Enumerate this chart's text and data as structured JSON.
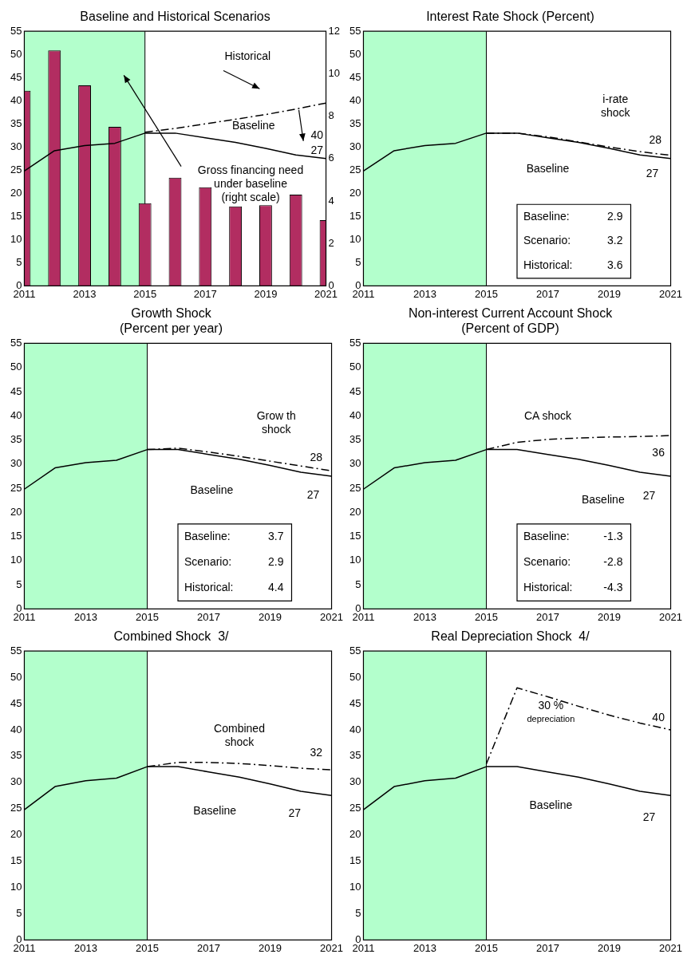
{
  "chart_data": [
    {
      "type": "line",
      "title": "Baseline and Historical Scenarios",
      "x": [
        2011,
        2012,
        2013,
        2014,
        2015,
        2016,
        2017,
        2018,
        2019,
        2020,
        2021
      ],
      "xlim": [
        2011,
        2021
      ],
      "xticks": [
        2011,
        2013,
        2015,
        2017,
        2019,
        2021
      ],
      "ylim": [
        0,
        55
      ],
      "yticks": [
        0,
        5,
        10,
        15,
        20,
        25,
        30,
        35,
        40,
        45,
        50,
        55
      ],
      "y2lim": [
        0,
        12
      ],
      "y2ticks": [
        0,
        2,
        4,
        6,
        8,
        10,
        12
      ],
      "grid": false,
      "legend": false,
      "marker": "none",
      "series": [
        {
          "type": "bar",
          "axis": "y2",
          "color": "#b22d61",
          "values": [
            9.2,
            11.1,
            9.45,
            7.5,
            3.9,
            5.1,
            4.65,
            3.75,
            3.8,
            4.3,
            3.1
          ]
        },
        {
          "color": "#000000",
          "line_style": "solid",
          "values": [
            24.8,
            29.2,
            30.3,
            30.8,
            33.0,
            33.0,
            32.0,
            31.0,
            29.7,
            28.3,
            27.5
          ]
        },
        {
          "color": "#000000",
          "line_style": "dashed",
          "values": [
            null,
            null,
            null,
            null,
            33.2,
            34.0,
            35.0,
            36.0,
            37.0,
            38.2,
            39.5
          ]
        }
      ],
      "bands": [
        {
          "axis": "x",
          "from": 2011,
          "to": 2015,
          "color": "#b3ffcc"
        }
      ],
      "ref_lines": [
        {
          "axis": "x",
          "value": 2015,
          "color": "#000000"
        }
      ],
      "annotations": [
        "Historical",
        "Baseline",
        "40",
        "27",
        "Gross financing need\nunder baseline\n(right scale)"
      ]
    },
    {
      "type": "line",
      "title": "Interest Rate Shock (Percent)",
      "x": [
        2011,
        2012,
        2013,
        2014,
        2015,
        2016,
        2017,
        2018,
        2019,
        2020,
        2021
      ],
      "xlim": [
        2011,
        2021
      ],
      "xticks": [
        2011,
        2013,
        2015,
        2017,
        2019,
        2021
      ],
      "ylim": [
        0,
        55
      ],
      "yticks": [
        0,
        5,
        10,
        15,
        20,
        25,
        30,
        35,
        40,
        45,
        50,
        55
      ],
      "grid": false,
      "legend": false,
      "marker": "none",
      "series": [
        {
          "color": "#000000",
          "line_style": "solid",
          "values": [
            24.8,
            29.2,
            30.3,
            30.8,
            33.0,
            33.0,
            32.0,
            31.0,
            29.7,
            28.3,
            27.5
          ]
        },
        {
          "color": "#000000",
          "line_style": "dashed",
          "values": [
            null,
            null,
            null,
            null,
            33.0,
            33.0,
            32.2,
            31.1,
            30.0,
            29.0,
            28.2
          ]
        }
      ],
      "bands": [
        {
          "axis": "x",
          "from": 2011,
          "to": 2015,
          "color": "#b3ffcc"
        }
      ],
      "ref_lines": [
        {
          "axis": "x",
          "value": 2015,
          "color": "#000000"
        }
      ],
      "annotations": [
        "i-rate\nshock",
        "28",
        "Baseline",
        "27",
        "Baseline:",
        "2.9",
        "Scenario:",
        "3.2",
        "Historical:",
        "3.6"
      ]
    },
    {
      "type": "line",
      "title": "Growth Shock",
      "subtitle": "(Percent per year)",
      "x": [
        2011,
        2012,
        2013,
        2014,
        2015,
        2016,
        2017,
        2018,
        2019,
        2020,
        2021
      ],
      "xlim": [
        2011,
        2021
      ],
      "xticks": [
        2011,
        2013,
        2015,
        2017,
        2019,
        2021
      ],
      "ylim": [
        0,
        55
      ],
      "yticks": [
        0,
        5,
        10,
        15,
        20,
        25,
        30,
        35,
        40,
        45,
        50,
        55
      ],
      "grid": false,
      "legend": false,
      "marker": "none",
      "series": [
        {
          "color": "#000000",
          "line_style": "solid",
          "values": [
            24.8,
            29.2,
            30.3,
            30.8,
            33.0,
            33.0,
            32.0,
            31.0,
            29.7,
            28.3,
            27.5
          ]
        },
        {
          "color": "#000000",
          "line_style": "dashed",
          "values": [
            null,
            null,
            null,
            null,
            33.0,
            33.3,
            32.5,
            31.6,
            30.6,
            29.6,
            28.6
          ]
        }
      ],
      "bands": [
        {
          "axis": "x",
          "from": 2011,
          "to": 2015,
          "color": "#b3ffcc"
        }
      ],
      "ref_lines": [
        {
          "axis": "x",
          "value": 2015,
          "color": "#000000"
        }
      ],
      "annotations": [
        "Grow th\nshock",
        "28",
        "Baseline",
        "27",
        "Baseline:",
        "3.7",
        "Scenario:",
        "2.9",
        "Historical:",
        "4.4"
      ]
    },
    {
      "type": "line",
      "title": "Non-interest Current Account Shock",
      "subtitle": "(Percent of GDP)",
      "x": [
        2011,
        2012,
        2013,
        2014,
        2015,
        2016,
        2017,
        2018,
        2019,
        2020,
        2021
      ],
      "xlim": [
        2011,
        2021
      ],
      "xticks": [
        2011,
        2013,
        2015,
        2017,
        2019,
        2021
      ],
      "ylim": [
        0,
        55
      ],
      "yticks": [
        0,
        5,
        10,
        15,
        20,
        25,
        30,
        35,
        40,
        45,
        50,
        55
      ],
      "grid": false,
      "legend": false,
      "marker": "none",
      "series": [
        {
          "color": "#000000",
          "line_style": "solid",
          "values": [
            24.8,
            29.2,
            30.3,
            30.8,
            33.0,
            33.0,
            32.0,
            31.0,
            29.7,
            28.3,
            27.5
          ]
        },
        {
          "color": "#000000",
          "line_style": "dashed",
          "values": [
            null,
            null,
            null,
            null,
            33.0,
            34.5,
            35.1,
            35.4,
            35.6,
            35.7,
            35.9
          ]
        }
      ],
      "bands": [
        {
          "axis": "x",
          "from": 2011,
          "to": 2015,
          "color": "#b3ffcc"
        }
      ],
      "ref_lines": [
        {
          "axis": "x",
          "value": 2015,
          "color": "#000000"
        }
      ],
      "annotations": [
        "CA shock",
        "36",
        "Baseline",
        "27",
        "Baseline:",
        "-1.3",
        "Scenario:",
        "-2.8",
        "Historical:",
        "-4.3"
      ]
    },
    {
      "type": "line",
      "title": "Combined Shock  3/",
      "x": [
        2011,
        2012,
        2013,
        2014,
        2015,
        2016,
        2017,
        2018,
        2019,
        2020,
        2021
      ],
      "xlim": [
        2011,
        2021
      ],
      "xticks": [
        2011,
        2013,
        2015,
        2017,
        2019,
        2021
      ],
      "ylim": [
        0,
        55
      ],
      "yticks": [
        0,
        5,
        10,
        15,
        20,
        25,
        30,
        35,
        40,
        45,
        50,
        55
      ],
      "grid": false,
      "legend": false,
      "marker": "none",
      "series": [
        {
          "color": "#000000",
          "line_style": "solid",
          "values": [
            24.8,
            29.2,
            30.3,
            30.8,
            33.0,
            33.0,
            32.0,
            31.0,
            29.7,
            28.3,
            27.5
          ]
        },
        {
          "color": "#000000",
          "line_style": "dashed",
          "values": [
            null,
            null,
            null,
            null,
            33.0,
            33.8,
            33.8,
            33.6,
            33.2,
            32.7,
            32.4
          ]
        }
      ],
      "bands": [
        {
          "axis": "x",
          "from": 2011,
          "to": 2015,
          "color": "#b3ffcc"
        }
      ],
      "ref_lines": [
        {
          "axis": "x",
          "value": 2015,
          "color": "#000000"
        }
      ],
      "annotations": [
        "Combined\nshock",
        "32",
        "Baseline",
        "27"
      ]
    },
    {
      "type": "line",
      "title": "Real Depreciation Shock  4/",
      "x": [
        2011,
        2012,
        2013,
        2014,
        2015,
        2016,
        2017,
        2018,
        2019,
        2020,
        2021
      ],
      "xlim": [
        2011,
        2021
      ],
      "xticks": [
        2011,
        2013,
        2015,
        2017,
        2019,
        2021
      ],
      "ylim": [
        0,
        55
      ],
      "yticks": [
        0,
        5,
        10,
        15,
        20,
        25,
        30,
        35,
        40,
        45,
        50,
        55
      ],
      "grid": false,
      "legend": false,
      "marker": "none",
      "series": [
        {
          "color": "#000000",
          "line_style": "solid",
          "values": [
            24.8,
            29.2,
            30.3,
            30.8,
            33.0,
            33.0,
            32.0,
            31.0,
            29.7,
            28.3,
            27.5
          ]
        },
        {
          "color": "#000000",
          "line_style": "dashed",
          "values": [
            null,
            null,
            null,
            null,
            33.5,
            48.0,
            46.3,
            44.5,
            42.8,
            41.3,
            40.0
          ]
        }
      ],
      "bands": [
        {
          "axis": "x",
          "from": 2011,
          "to": 2015,
          "color": "#b3ffcc"
        }
      ],
      "ref_lines": [
        {
          "axis": "x",
          "value": 2015,
          "color": "#000000"
        }
      ],
      "annotations": [
        "30 %\ndepreciation",
        "40",
        "Baseline",
        "27"
      ]
    }
  ]
}
